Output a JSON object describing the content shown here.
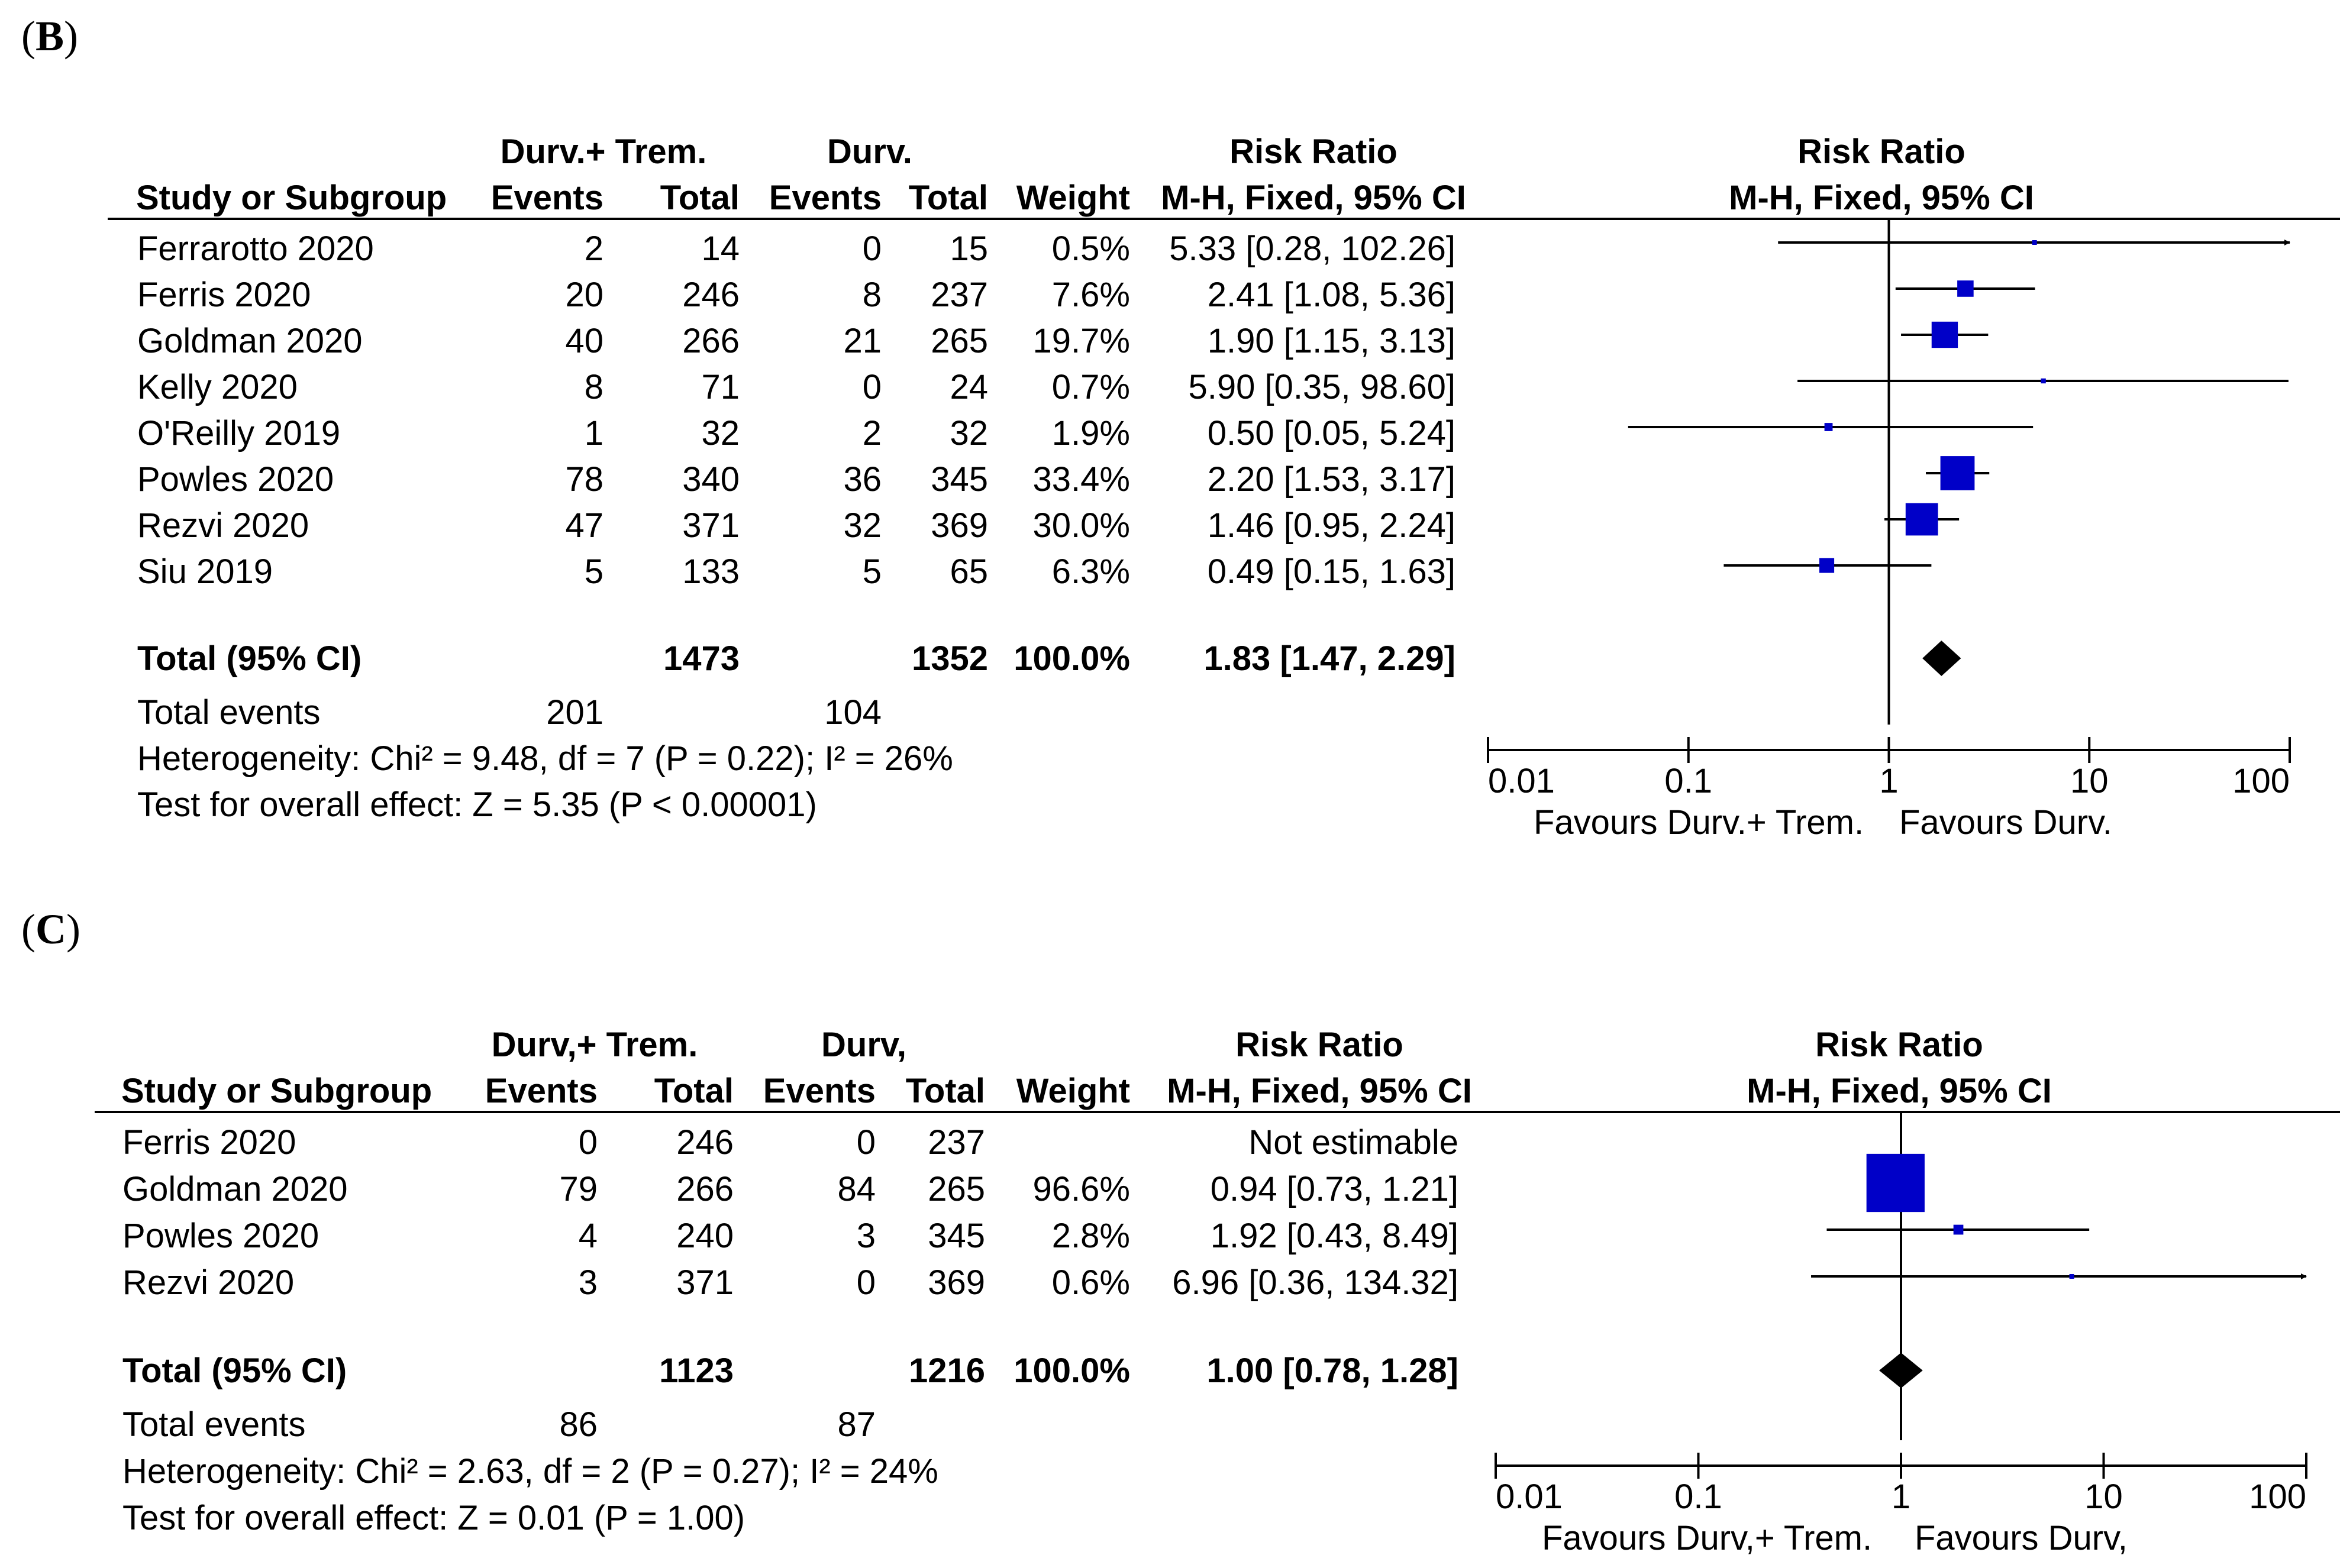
{
  "colors": {
    "box": "#0000c8",
    "line": "#000000",
    "diamond": "#000000"
  },
  "figure": {
    "panels": [
      {
        "id": "B",
        "label": "B",
        "group1_name": "Durv.+ Trem.",
        "group2_name": "Durv.",
        "headers": {
          "study": "Study or Subgroup",
          "events1": "Events",
          "total1": "Total",
          "events2": "Events",
          "total2": "Total",
          "weight": "Weight",
          "rr_title": "Risk Ratio",
          "rr_sub": "M-H, Fixed, 95% CI",
          "plot_title": "Risk Ratio",
          "plot_sub": "M-H, Fixed, 95% CI"
        },
        "rows": [
          {
            "study": "Ferrarotto 2020",
            "e1": "2",
            "t1": "14",
            "e2": "0",
            "t2": "15",
            "weight": "0.5%",
            "ci_text": "5.33 [0.28, 102.26]"
          },
          {
            "study": "Ferris 2020",
            "e1": "20",
            "t1": "246",
            "e2": "8",
            "t2": "237",
            "weight": "7.6%",
            "ci_text": "2.41 [1.08, 5.36]"
          },
          {
            "study": "Goldman 2020",
            "e1": "40",
            "t1": "266",
            "e2": "21",
            "t2": "265",
            "weight": "19.7%",
            "ci_text": "1.90 [1.15, 3.13]"
          },
          {
            "study": "Kelly 2020",
            "e1": "8",
            "t1": "71",
            "e2": "0",
            "t2": "24",
            "weight": "0.7%",
            "ci_text": "5.90 [0.35, 98.60]"
          },
          {
            "study": "O'Reilly 2019",
            "e1": "1",
            "t1": "32",
            "e2": "2",
            "t2": "32",
            "weight": "1.9%",
            "ci_text": "0.50 [0.05, 5.24]"
          },
          {
            "study": "Powles 2020",
            "e1": "78",
            "t1": "340",
            "e2": "36",
            "t2": "345",
            "weight": "33.4%",
            "ci_text": "2.20 [1.53, 3.17]"
          },
          {
            "study": "Rezvi 2020",
            "e1": "47",
            "t1": "371",
            "e2": "32",
            "t2": "369",
            "weight": "30.0%",
            "ci_text": "1.46 [0.95, 2.24]"
          },
          {
            "study": "Siu 2019",
            "e1": "5",
            "t1": "133",
            "e2": "5",
            "t2": "65",
            "weight": "6.3%",
            "ci_text": "0.49 [0.15, 1.63]"
          }
        ],
        "total": {
          "label": "Total (95% CI)",
          "t1": "1473",
          "t2": "1352",
          "weight": "100.0%",
          "ci_text": "1.83 [1.47, 2.29]"
        },
        "total_events": {
          "label": "Total events",
          "e1": "201",
          "e2": "104"
        },
        "heterogeneity": "Heterogeneity: Chi² = 9.48, df = 7 (P = 0.22); I² = 26%",
        "overall_effect": "Test for overall effect: Z = 5.35 (P < 0.00001)",
        "axis_ticks": [
          "0.01",
          "0.1",
          "1",
          "10",
          "100"
        ],
        "favours_left": "Favours Durv.+ Trem.",
        "favours_right": "Favours Durv."
      },
      {
        "id": "C",
        "label": "C",
        "group1_name": "Durv,+ Trem.",
        "group2_name": "Durv,",
        "headers": {
          "study": "Study or Subgroup",
          "events1": "Events",
          "total1": "Total",
          "events2": "Events",
          "total2": "Total",
          "weight": "Weight",
          "rr_title": "Risk Ratio",
          "rr_sub": "M-H, Fixed, 95% CI",
          "plot_title": "Risk Ratio",
          "plot_sub": "M-H, Fixed, 95% CI"
        },
        "rows": [
          {
            "study": "Ferris 2020",
            "e1": "0",
            "t1": "246",
            "e2": "0",
            "t2": "237",
            "weight": "",
            "ci_text": "Not estimable"
          },
          {
            "study": "Goldman 2020",
            "e1": "79",
            "t1": "266",
            "e2": "84",
            "t2": "265",
            "weight": "96.6%",
            "ci_text": "0.94 [0.73, 1.21]"
          },
          {
            "study": "Powles 2020",
            "e1": "4",
            "t1": "240",
            "e2": "3",
            "t2": "345",
            "weight": "2.8%",
            "ci_text": "1.92 [0.43, 8.49]"
          },
          {
            "study": "Rezvi 2020",
            "e1": "3",
            "t1": "371",
            "e2": "0",
            "t2": "369",
            "weight": "0.6%",
            "ci_text": "6.96 [0.36, 134.32]"
          }
        ],
        "total": {
          "label": "Total (95% CI)",
          "t1": "1123",
          "t2": "1216",
          "weight": "100.0%",
          "ci_text": "1.00 [0.78, 1.28]"
        },
        "total_events": {
          "label": "Total events",
          "e1": "86",
          "e2": "87"
        },
        "heterogeneity": "Heterogeneity: Chi² = 2.63, df = 2 (P = 0.27); I² = 24%",
        "overall_effect": "Test for overall effect: Z = 0.01 (P = 1.00)",
        "axis_ticks": [
          "0.01",
          "0.1",
          "1",
          "10",
          "100"
        ],
        "favours_left": "Favours Durv,+ Trem.",
        "favours_right": "Favours Durv,"
      }
    ]
  },
  "chart_data": [
    {
      "type": "forest",
      "title": "Risk Ratio M-H, Fixed, 95% CI",
      "xscale": "log",
      "xlim": [
        0.01,
        100
      ],
      "null_value": 1,
      "studies": [
        {
          "name": "Ferrarotto 2020",
          "rr": 5.33,
          "lo": 0.28,
          "hi": 102.26,
          "weight": 0.5
        },
        {
          "name": "Ferris 2020",
          "rr": 2.41,
          "lo": 1.08,
          "hi": 5.36,
          "weight": 7.6
        },
        {
          "name": "Goldman 2020",
          "rr": 1.9,
          "lo": 1.15,
          "hi": 3.13,
          "weight": 19.7
        },
        {
          "name": "Kelly 2020",
          "rr": 5.9,
          "lo": 0.35,
          "hi": 98.6,
          "weight": 0.7
        },
        {
          "name": "O'Reilly 2019",
          "rr": 0.5,
          "lo": 0.05,
          "hi": 5.24,
          "weight": 1.9
        },
        {
          "name": "Powles 2020",
          "rr": 2.2,
          "lo": 1.53,
          "hi": 3.17,
          "weight": 33.4
        },
        {
          "name": "Rezvi 2020",
          "rr": 1.46,
          "lo": 0.95,
          "hi": 2.24,
          "weight": 30.0
        },
        {
          "name": "Siu 2019",
          "rr": 0.49,
          "lo": 0.15,
          "hi": 1.63,
          "weight": 6.3
        }
      ],
      "pooled": {
        "rr": 1.83,
        "lo": 1.47,
        "hi": 2.29
      }
    },
    {
      "type": "forest",
      "title": "Risk Ratio M-H, Fixed, 95% CI",
      "xscale": "log",
      "xlim": [
        0.01,
        100
      ],
      "null_value": 1,
      "studies": [
        {
          "name": "Ferris 2020",
          "rr": null,
          "lo": null,
          "hi": null,
          "weight": null
        },
        {
          "name": "Goldman 2020",
          "rr": 0.94,
          "lo": 0.73,
          "hi": 1.21,
          "weight": 96.6
        },
        {
          "name": "Powles 2020",
          "rr": 1.92,
          "lo": 0.43,
          "hi": 8.49,
          "weight": 2.8
        },
        {
          "name": "Rezvi 2020",
          "rr": 6.96,
          "lo": 0.36,
          "hi": 134.32,
          "weight": 0.6
        }
      ],
      "pooled": {
        "rr": 1.0,
        "lo": 0.78,
        "hi": 1.28
      }
    }
  ]
}
